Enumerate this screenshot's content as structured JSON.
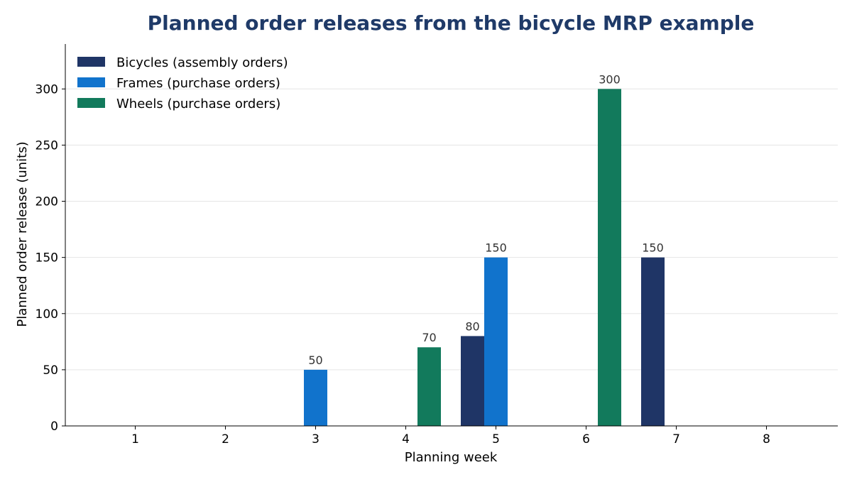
{
  "chart_data": {
    "type": "bar",
    "title": "Planned order releases from the bicycle MRP example",
    "xlabel": "Planning week",
    "ylabel": "Planned order release (units)",
    "categories": [
      "1",
      "2",
      "3",
      "4",
      "5",
      "6",
      "7",
      "8"
    ],
    "ylim": [
      0,
      340
    ],
    "yticks": [
      0,
      50,
      100,
      150,
      200,
      250,
      300
    ],
    "grid": "horizontal",
    "legend_position": "top-left",
    "title_color": "#1f3a68",
    "series": [
      {
        "name": "Bicycles (assembly orders)",
        "color": "#1f3566",
        "values": [
          0,
          0,
          0,
          0,
          80,
          0,
          150,
          0
        ]
      },
      {
        "name": "Frames (purchase orders)",
        "color": "#1173cc",
        "values": [
          0,
          0,
          50,
          0,
          150,
          0,
          0,
          0
        ]
      },
      {
        "name": "Wheels (purchase orders)",
        "color": "#127a5c",
        "values": [
          0,
          0,
          0,
          70,
          0,
          300,
          0,
          0
        ]
      }
    ]
  }
}
